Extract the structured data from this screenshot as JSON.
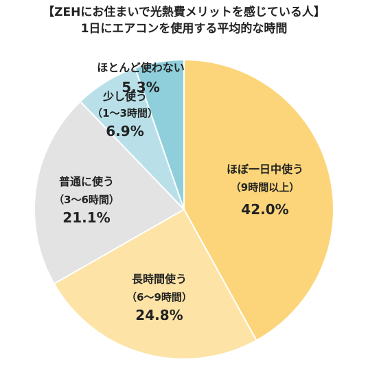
{
  "title_line1": "【ZEHにお住まいで光熱費メリットを感じている人】",
  "title_line2": "1日にエアコンを使用する平均的な時間",
  "chart_data": {
    "type": "pie",
    "start_angle_deg": 0,
    "direction": "clockwise",
    "slices": [
      {
        "label": "ほぼ一日中使う",
        "sublabel": "（9時間以上）",
        "value": 42.0,
        "display": "42.0%",
        "color": "#FCD57A"
      },
      {
        "label": "長時間使う",
        "sublabel": "（6～9時間）",
        "value": 24.8,
        "display": "24.8%",
        "color": "#FDE3A6"
      },
      {
        "label": "普通に使う",
        "sublabel": "（3～6時間）",
        "value": 21.1,
        "display": "21.1%",
        "color": "#E3E3E3"
      },
      {
        "label": "少し使う",
        "sublabel": "（1～3時間）",
        "value": 6.9,
        "display": "6.9%",
        "color": "#B9E0E8"
      },
      {
        "label": "ほとんど使わない",
        "sublabel": "",
        "value": 5.3,
        "display": "5.3%",
        "color": "#8FCFDC"
      }
    ]
  }
}
